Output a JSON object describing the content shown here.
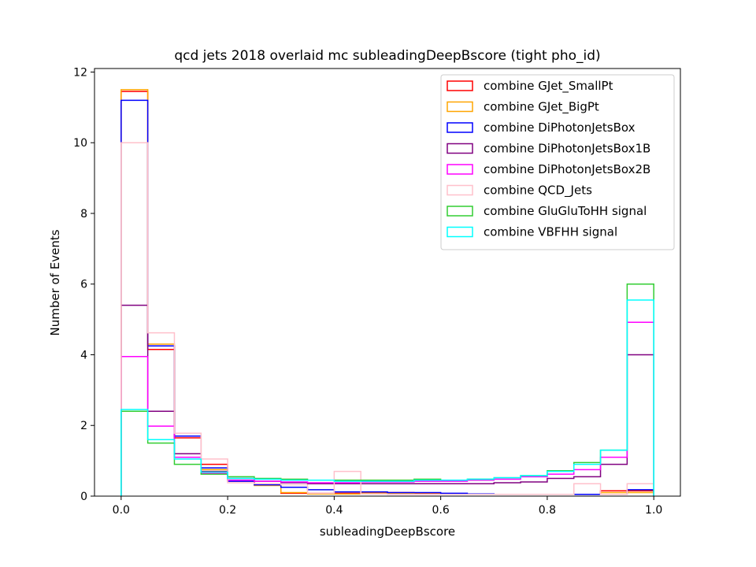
{
  "chart_data": {
    "type": "histogram",
    "title": "qcd jets 2018 overlaid mc subleadingDeepBscore (tight pho_id)",
    "xlabel": "subleadingDeepBscore",
    "ylabel": "Number of Events",
    "xlim": [
      -0.05,
      1.05
    ],
    "ylim": [
      0,
      12.1
    ],
    "xticks": [
      "0.0",
      "0.2",
      "0.4",
      "0.6",
      "0.8",
      "1.0"
    ],
    "yticks": [
      "0",
      "2",
      "4",
      "6",
      "8",
      "10",
      "12"
    ],
    "grid": false,
    "legend_position": "top-right",
    "bin_edges": [
      0.0,
      0.05,
      0.1,
      0.15,
      0.2,
      0.25,
      0.3,
      0.35,
      0.4,
      0.45,
      0.5,
      0.55,
      0.6,
      0.65,
      0.7,
      0.75,
      0.8,
      0.85,
      0.9,
      0.95,
      1.0
    ],
    "series": [
      {
        "name": "combine GJet_SmallPt",
        "color": "#ff0000",
        "values": [
          11.45,
          4.15,
          1.65,
          0.9,
          0.45,
          0.35,
          0.08,
          0.08,
          0.08,
          0.1,
          0.1,
          0.08,
          0.06,
          0.05,
          0.05,
          0.05,
          0.05,
          0.05,
          0.15,
          0.15
        ]
      },
      {
        "name": "combine GJet_BigPt",
        "color": "#ffa500",
        "values": [
          11.5,
          4.3,
          1.7,
          0.75,
          0.42,
          0.3,
          0.1,
          0.06,
          0.06,
          0.08,
          0.08,
          0.06,
          0.05,
          0.05,
          0.05,
          0.05,
          0.05,
          0.05,
          0.1,
          0.1
        ]
      },
      {
        "name": "combine DiPhotonJetsBox",
        "color": "#0000ff",
        "values": [
          11.2,
          4.25,
          1.7,
          0.8,
          0.42,
          0.32,
          0.25,
          0.18,
          0.12,
          0.12,
          0.1,
          0.1,
          0.08,
          0.06,
          0.05,
          0.05,
          0.05,
          0.05,
          0.05,
          0.18
        ]
      },
      {
        "name": "combine DiPhotonJetsBox1B",
        "color": "#800080",
        "values": [
          5.4,
          2.4,
          1.2,
          0.7,
          0.5,
          0.42,
          0.38,
          0.35,
          0.35,
          0.35,
          0.35,
          0.35,
          0.35,
          0.35,
          0.38,
          0.4,
          0.5,
          0.55,
          0.9,
          4.0
        ]
      },
      {
        "name": "combine DiPhotonJetsBox2B",
        "color": "#ff00ff",
        "values": [
          3.95,
          1.98,
          1.1,
          0.65,
          0.45,
          0.42,
          0.4,
          0.38,
          0.38,
          0.4,
          0.4,
          0.42,
          0.42,
          0.45,
          0.48,
          0.55,
          0.62,
          0.75,
          1.1,
          4.92
        ]
      },
      {
        "name": "combine QCD_Jets",
        "color": "#ffc0cb",
        "values": [
          10.0,
          4.62,
          1.78,
          1.05,
          0.38,
          0.35,
          0.32,
          0.08,
          0.7,
          0.06,
          0.05,
          0.05,
          0.05,
          0.05,
          0.05,
          0.05,
          0.05,
          0.35,
          0.05,
          0.35
        ]
      },
      {
        "name": "combine GluGluToHH signal",
        "color": "#32cd32",
        "values": [
          2.4,
          1.5,
          0.9,
          0.62,
          0.55,
          0.5,
          0.48,
          0.45,
          0.45,
          0.45,
          0.45,
          0.48,
          0.45,
          0.48,
          0.52,
          0.58,
          0.72,
          0.95,
          1.3,
          6.0
        ]
      },
      {
        "name": "combine VBFHH signal",
        "color": "#00ffff",
        "values": [
          2.45,
          1.6,
          1.05,
          0.68,
          0.5,
          0.48,
          0.45,
          0.45,
          0.42,
          0.42,
          0.42,
          0.45,
          0.45,
          0.48,
          0.52,
          0.58,
          0.7,
          0.9,
          1.3,
          5.55
        ]
      }
    ]
  }
}
